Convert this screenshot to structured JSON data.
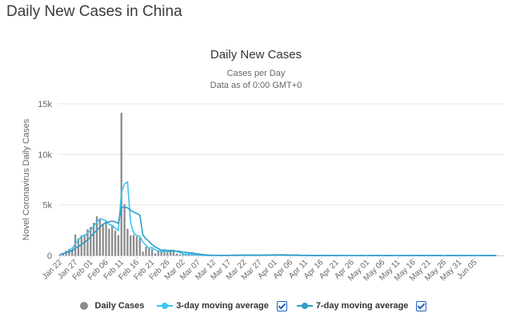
{
  "page": {
    "title": "Daily New Cases in China"
  },
  "chart_data": {
    "type": "bar",
    "title": "Daily New Cases",
    "subtitle": "Cases per Day",
    "subtitle2": "Data as of 0:00 GMT+0",
    "ylabel": "Novel Coronavirus Daily Cases",
    "xlabel": "",
    "ylim": [
      0,
      15000
    ],
    "yticks": [
      0,
      5000,
      10000,
      15000
    ],
    "ytick_labels": [
      "0",
      "5k",
      "10k",
      "15k"
    ],
    "xtick_labels": [
      "Jan 22",
      "Jan 27",
      "Feb 01",
      "Feb 06",
      "Feb 11",
      "Feb 16",
      "Feb 21",
      "Feb 26",
      "Mar 02",
      "Mar 07",
      "Mar 12",
      "Mar 17",
      "Mar 22",
      "Mar 27",
      "Apr 01",
      "Apr 06",
      "Apr 11",
      "Apr 16",
      "Apr 21",
      "Apr 26",
      "May 01",
      "May 06",
      "May 11",
      "May 16",
      "May 21",
      "May 26",
      "May 31",
      "Jun 05"
    ],
    "grid": true,
    "legend_position": "bottom",
    "legend": [
      {
        "name": "Daily Cases",
        "color": "#8c8c8c",
        "checkbox": false
      },
      {
        "name": "3-day moving average",
        "color": "#3bc4f2",
        "checkbox": true
      },
      {
        "name": "7-day moving average",
        "color": "#2f9cc7",
        "checkbox": true
      }
    ],
    "series": [
      {
        "name": "Daily Cases",
        "type": "bar",
        "color": "#8c8c8c",
        "values": [
          95,
          277,
          486,
          669,
          802,
          2077,
          1692,
          2001,
          2099,
          2600,
          2830,
          3235,
          3884,
          3694,
          3143,
          3385,
          2652,
          2973,
          2467,
          2015,
          14108,
          5090,
          2641,
          2008,
          2048,
          1886,
          1749,
          391,
          889,
          823,
          648,
          214,
          508,
          406,
          433,
          327,
          427,
          573,
          202,
          125,
          119,
          139,
          143,
          99,
          44,
          40,
          19,
          24,
          15,
          8,
          11,
          20,
          16,
          21,
          13,
          34,
          39,
          41,
          46,
          45,
          20,
          31,
          33,
          35,
          31,
          48,
          54,
          67,
          55,
          85,
          59,
          73,
          47,
          30,
          38,
          35,
          21,
          30,
          12,
          6,
          8,
          1,
          5,
          11,
          4,
          22,
          4,
          1,
          6,
          3,
          1,
          3,
          2,
          1,
          2,
          1,
          4,
          3,
          1,
          1,
          3,
          16,
          7,
          1,
          2,
          5,
          2,
          1,
          1,
          8,
          3,
          5,
          4,
          4,
          2,
          4,
          6,
          3,
          4,
          3,
          3,
          6,
          2,
          3,
          5,
          1,
          5,
          6,
          4,
          1,
          6,
          3,
          3,
          2,
          6,
          5,
          3,
          1,
          2,
          6,
          4,
          4,
          3,
          5,
          2
        ]
      },
      {
        "name": "3-day moving average",
        "type": "line",
        "color": "#3bc4f2",
        "values": [
          95,
          186,
          286,
          477,
          652,
          1183,
          1524,
          1923,
          1931,
          2233,
          2510,
          2888,
          3316,
          3604,
          3574,
          3407,
          3060,
          3003,
          2697,
          2485,
          6197,
          7071,
          7280,
          3246,
          2232,
          1981,
          1894,
          1342,
          1010,
          701,
          787,
          562,
          457,
          376,
          449,
          389,
          396,
          442,
          401,
          300,
          149,
          128,
          134,
          127,
          95,
          61,
          34,
          28,
          19,
          16,
          11,
          13,
          16,
          19,
          17,
          23,
          29,
          38,
          42,
          44,
          37,
          32,
          28,
          33,
          33,
          38,
          44,
          56,
          59,
          69,
          66,
          72,
          60,
          50,
          38,
          34,
          31,
          29,
          21,
          16,
          9,
          5,
          5,
          6,
          7,
          12,
          10,
          9,
          4,
          3,
          3,
          2,
          2,
          2,
          2,
          2,
          2,
          3,
          3,
          2,
          2,
          7,
          9,
          8,
          3,
          3,
          3,
          3,
          1,
          3,
          4,
          5,
          4,
          4,
          3,
          3,
          4,
          4,
          4,
          3,
          3,
          4,
          4,
          4,
          3,
          3,
          4,
          4,
          4,
          4,
          4,
          3,
          4,
          4,
          5,
          3,
          3,
          3,
          4,
          4,
          4,
          4,
          3
        ]
      },
      {
        "name": "7-day moving average",
        "type": "line",
        "color": "#2f9cc7",
        "values": [
          95,
          186,
          286,
          382,
          466,
          734,
          871,
          1086,
          1318,
          1549,
          1853,
          2191,
          2506,
          2820,
          3093,
          3264,
          3328,
          3395,
          3328,
          3168,
          4725,
          4791,
          4715,
          4479,
          4303,
          4158,
          4000,
          2048,
          1650,
          1399,
          1076,
          847,
          692,
          516,
          543,
          486,
          506,
          457,
          432,
          412,
          343,
          306,
          269,
          257,
          196,
          156,
          121,
          84,
          53,
          36,
          27,
          22,
          19,
          17,
          15,
          17,
          21,
          27,
          31,
          35,
          35,
          36,
          36,
          39,
          37,
          41,
          43,
          47,
          47,
          54,
          55,
          59,
          62,
          62,
          59,
          55,
          48,
          44,
          33,
          25,
          20,
          15,
          11,
          9,
          8,
          7,
          7,
          8,
          6,
          6,
          5,
          5,
          4,
          3,
          3,
          2,
          2,
          2,
          2,
          2,
          3,
          4,
          4,
          4,
          4,
          5,
          5,
          5,
          4,
          3,
          3,
          3,
          3,
          4,
          4,
          4,
          4,
          4,
          4,
          4,
          4,
          4,
          4,
          4,
          4,
          3,
          4,
          4,
          4,
          4,
          4,
          4,
          4,
          3,
          3,
          4,
          4,
          3,
          4,
          4,
          4,
          4,
          4
        ]
      }
    ]
  }
}
